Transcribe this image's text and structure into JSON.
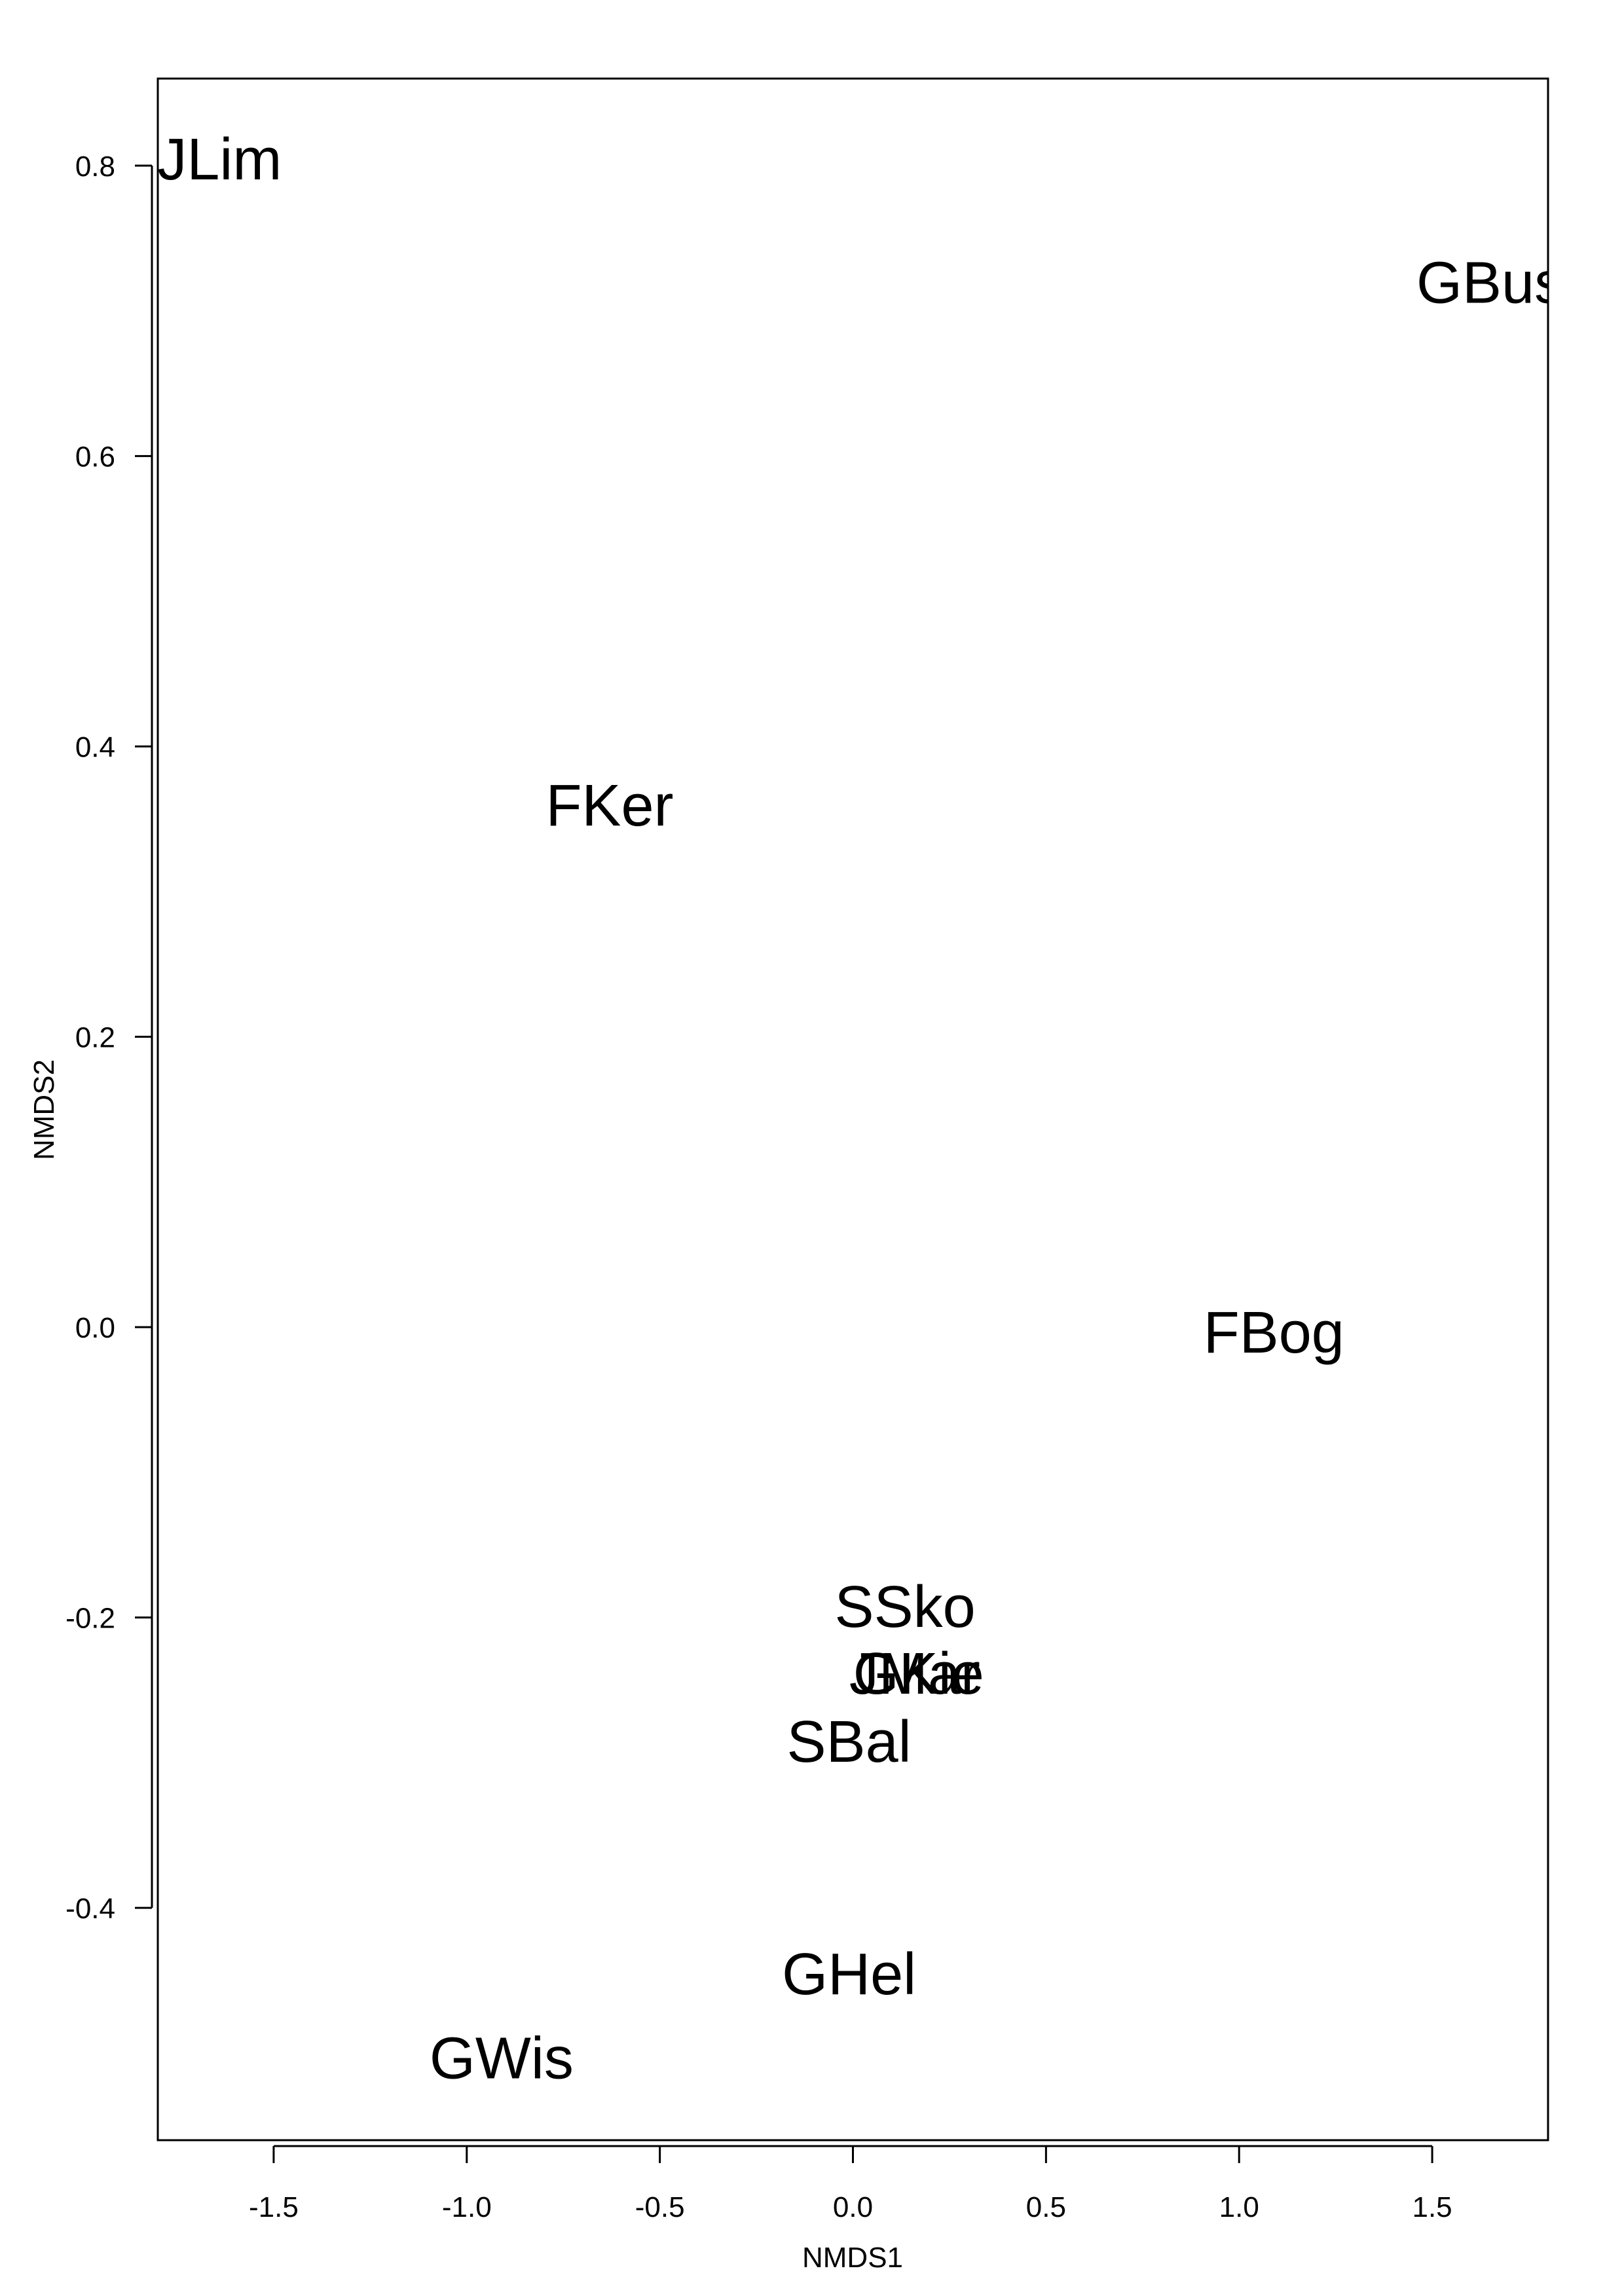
{
  "chart_data": {
    "type": "scatter",
    "title": "",
    "xlabel": "NMDS1",
    "ylabel": "NMDS2",
    "xlim": [
      -1.8,
      1.8
    ],
    "ylim": [
      -0.56,
      0.86
    ],
    "grid": false,
    "legend": "none",
    "x_ticks": [
      -1.5,
      -1.0,
      -0.5,
      0.0,
      0.5,
      1.0,
      1.5
    ],
    "x_tick_labels": [
      "-1.5",
      "-1.0",
      "-0.5",
      "0.0",
      "0.5",
      "1.0",
      "1.5"
    ],
    "y_ticks": [
      -0.4,
      -0.2,
      0.0,
      0.2,
      0.4,
      0.6,
      0.8
    ],
    "y_tick_labels": [
      "-0.4",
      "-0.2",
      "0.0",
      "0.2",
      "0.4",
      "0.6",
      "0.8"
    ],
    "points": [
      {
        "label": "JLim",
        "x": -1.64,
        "y": 0.805
      },
      {
        "label": "GBus",
        "x": 1.65,
        "y": 0.72
      },
      {
        "label": "FKer",
        "x": -0.63,
        "y": 0.36
      },
      {
        "label": "FBog",
        "x": 1.09,
        "y": -0.003
      },
      {
        "label": "SSko",
        "x": 0.135,
        "y": -0.192
      },
      {
        "label": "JMar",
        "x": 0.16,
        "y": -0.238
      },
      {
        "label": "GKie",
        "x": 0.17,
        "y": -0.238
      },
      {
        "label": "SBal",
        "x": -0.01,
        "y": -0.285
      },
      {
        "label": "GHel",
        "x": -0.01,
        "y": -0.445
      },
      {
        "label": "GWis",
        "x": -0.91,
        "y": -0.503
      }
    ]
  }
}
